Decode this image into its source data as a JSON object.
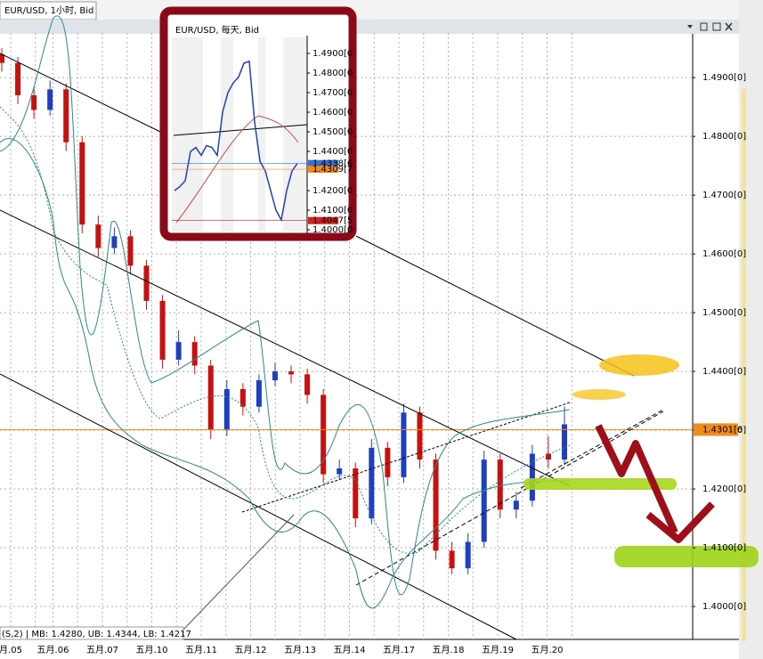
{
  "chart_data": [
    {
      "type": "candlestick",
      "title": "EUR/USD, 1小时, Bid",
      "categories": [
        "月.05",
        "五月.06",
        "五月.07",
        "五月.10",
        "五月.11",
        "五月.12",
        "五月.13",
        "五月.14",
        "五月.17",
        "五月.18",
        "五月.19",
        "五月.20"
      ],
      "series": {
        "open": [
          1.494,
          1.4925,
          1.487,
          1.4845,
          1.488,
          1.479,
          1.465,
          1.461,
          1.463,
          1.458,
          1.452,
          1.442,
          1.445,
          1.441,
          1.43,
          1.437,
          1.434,
          1.4385,
          1.44,
          1.4395,
          1.436,
          1.4225,
          1.4235,
          1.415,
          1.427,
          1.422,
          1.433,
          1.425,
          1.4095,
          1.4065,
          1.411,
          1.425,
          1.4165,
          1.418,
          1.426,
          1.425
        ],
        "high": [
          1.495,
          1.4935,
          1.4885,
          1.4895,
          1.489,
          1.48,
          1.4665,
          1.4645,
          1.464,
          1.459,
          1.453,
          1.447,
          1.446,
          1.442,
          1.4385,
          1.438,
          1.4395,
          1.4415,
          1.441,
          1.4405,
          1.437,
          1.425,
          1.4245,
          1.4285,
          1.428,
          1.4345,
          1.434,
          1.426,
          1.411,
          1.4125,
          1.4265,
          1.426,
          1.4195,
          1.4275,
          1.429,
          1.434
        ],
        "low": [
          1.491,
          1.4855,
          1.483,
          1.4835,
          1.4775,
          1.4635,
          1.4595,
          1.46,
          1.4565,
          1.4505,
          1.4405,
          1.441,
          1.4395,
          1.4285,
          1.429,
          1.4325,
          1.433,
          1.4375,
          1.438,
          1.4345,
          1.421,
          1.4215,
          1.4135,
          1.414,
          1.4205,
          1.421,
          1.4235,
          1.408,
          1.4055,
          1.4055,
          1.41,
          1.415,
          1.415,
          1.417,
          1.4235,
          1.424
        ],
        "close": [
          1.4925,
          1.487,
          1.4845,
          1.488,
          1.479,
          1.465,
          1.461,
          1.463,
          1.458,
          1.452,
          1.442,
          1.445,
          1.441,
          1.43,
          1.437,
          1.434,
          1.4385,
          1.44,
          1.4395,
          1.436,
          1.4225,
          1.4235,
          1.415,
          1.427,
          1.422,
          1.433,
          1.425,
          1.4095,
          1.4065,
          1.411,
          1.425,
          1.4165,
          1.418,
          1.426,
          1.425,
          1.431
        ]
      },
      "up_color": "#1f3fbf",
      "down_color": "#c81010",
      "ylim": [
        1.3944,
        1.4976
      ],
      "yticks": [
        {
          "value": 1.49,
          "label": "1.4900[0]"
        },
        {
          "value": 1.48,
          "label": "1.4800[0]"
        },
        {
          "value": 1.47,
          "label": "1.4700[0]"
        },
        {
          "value": 1.46,
          "label": "1.4600[0]"
        },
        {
          "value": 1.45,
          "label": "1.4500[0]"
        },
        {
          "value": 1.44,
          "label": "1.4400[0]"
        },
        {
          "value": 1.43,
          "label": "1.4300[0]"
        },
        {
          "value": 1.42,
          "label": "1.4200[0]"
        },
        {
          "value": 1.41,
          "label": "1.4100[0]"
        },
        {
          "value": 1.4,
          "label": "1.4000[0]"
        }
      ],
      "grid": true,
      "current_price": {
        "value": 1.4301,
        "label": "1.4301[6",
        "color": "#f08c1e"
      },
      "indicator_label": "(S,2) | MB: 1.4280, UB: 1.4344, LB: 1.4217"
    },
    {
      "type": "line",
      "title": "EUR/USD, 每天, Bid",
      "values": [
        1.42,
        1.422,
        1.425,
        1.44,
        1.442,
        1.438,
        1.443,
        1.442,
        1.438,
        1.46,
        1.47,
        1.475,
        1.478,
        1.485,
        1.486,
        1.455,
        1.435,
        1.43,
        1.42,
        1.41,
        1.405,
        1.42,
        1.43,
        1.4339
      ],
      "color": "#1f3fbf",
      "ylim": [
        1.3991,
        1.4991
      ],
      "yticks": [
        {
          "value": 1.49,
          "label": "1.4900[0"
        },
        {
          "value": 1.48,
          "label": "1.4800[0"
        },
        {
          "value": 1.47,
          "label": "1.4700[0"
        },
        {
          "value": 1.46,
          "label": "1.4600[0"
        },
        {
          "value": 1.45,
          "label": "1.4500[0"
        },
        {
          "value": 1.44,
          "label": "1.4400[0"
        },
        {
          "value": 1.42,
          "label": "1.4200[0"
        },
        {
          "value": 1.41,
          "label": "1.4100[0"
        },
        {
          "value": 1.4,
          "label": "1.4000[0"
        }
      ],
      "price_markers": [
        {
          "value": 1.4338,
          "label": "1.4338[6",
          "color": "#3a6fd8"
        },
        {
          "value": 1.4309,
          "label": "1.4309[7",
          "color": "#f08c1e"
        },
        {
          "value": 1.4047,
          "label": "1.4047[5",
          "color": "#d02020"
        }
      ]
    }
  ]
}
